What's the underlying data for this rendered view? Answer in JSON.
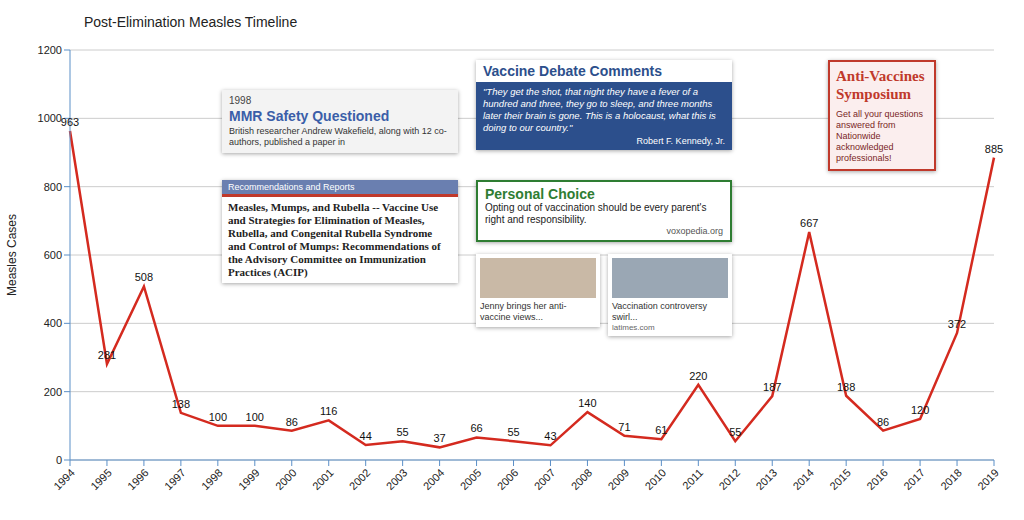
{
  "chart_data": {
    "type": "line",
    "title": "Post-Elimination Measles Timeline",
    "y_label": "Measles Cases",
    "categories": [
      "1994",
      "1995",
      "1996",
      "1997",
      "1998",
      "1999",
      "2000",
      "2001",
      "2002",
      "2003",
      "2004",
      "2005",
      "2006",
      "2007",
      "2008",
      "2009",
      "2010",
      "2011",
      "2012",
      "2013",
      "2014",
      "2015",
      "2016",
      "2017",
      "2018",
      "2019"
    ],
    "values": [
      963,
      281,
      508,
      138,
      100,
      100,
      86,
      116,
      44,
      55,
      37,
      66,
      55,
      43,
      140,
      71,
      61,
      220,
      55,
      187,
      667,
      188,
      86,
      120,
      372,
      885
    ],
    "color": "#d42a1f",
    "ylim": [
      0,
      1200
    ],
    "yticks": [
      0,
      200,
      400,
      600,
      800,
      1000,
      1200
    ],
    "grid": true,
    "data_labels": true,
    "marker": "none",
    "annotations": [
      {
        "date": "1998",
        "heading": "MMR Safety Questioned",
        "text": "British researcher Andrew Wakefield, along with 12 co-authors, published a paper in"
      },
      {
        "heading": "Recommendations and Reports",
        "text": "Measles, Mumps, and Rubella -- Vaccine Use and Strategies for Elimination of Measles, Rubella, and Congenital Rubella Syndrome and Control of Mumps: Recommendations of the Advisory Committee on Immunization Practices (ACIP)"
      },
      {
        "heading": "Vaccine Debate Comments",
        "text": "\"They get the shot, that night they have a fever of a hundred and three, they go to sleep, and three months later their brain is gone. This is a holocaust, what this is doing to our country.\"",
        "source": "Robert F. Kennedy, Jr."
      },
      {
        "heading": "Personal Choice",
        "text": "Opting out of vaccination should be every parent's right and responsibility.",
        "source": "voxopedia.org"
      },
      {
        "text": "Jenny brings her anti-vaccine views..."
      },
      {
        "text": "Vaccination controversy swirl...",
        "source": "latimes.com"
      },
      {
        "heading": "Anti-Vaccines Symposium",
        "text": "Get all your questions answered from Nationwide acknowledged professionals!"
      }
    ]
  }
}
